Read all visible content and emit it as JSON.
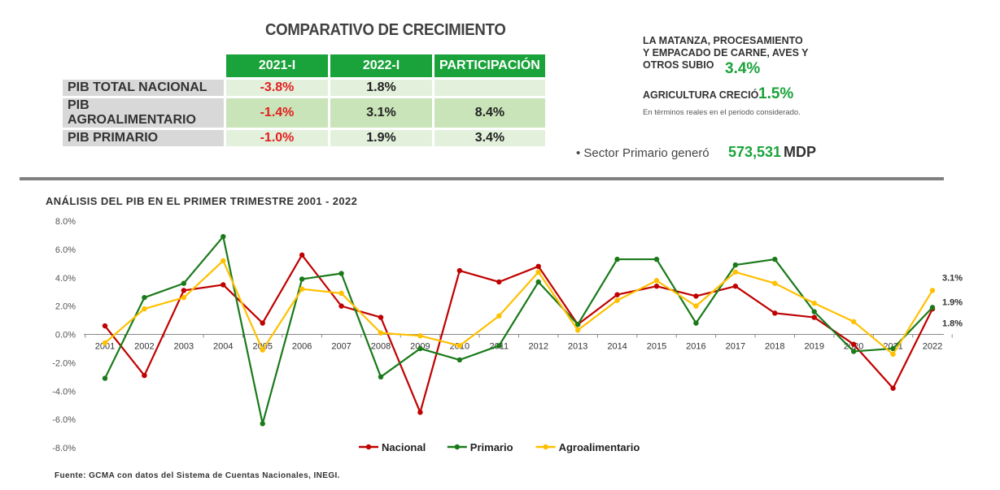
{
  "comparison": {
    "title": "COMPARATIVO DE CRECIMIENTO",
    "headers": [
      "2021-I",
      "2022-I",
      "PARTICIPACIÓN"
    ],
    "rows": [
      {
        "label": "PIB TOTAL NACIONAL",
        "y2021": "-3.8%",
        "y2022": "1.8%",
        "share": ""
      },
      {
        "label": "PIB AGROALIMENTARIO",
        "y2021": "-1.4%",
        "y2022": "3.1%",
        "share": "8.4%"
      },
      {
        "label": "PIB PRIMARIO",
        "y2021": "-1.0%",
        "y2022": "1.9%",
        "share": "3.4%"
      }
    ]
  },
  "notes": {
    "note1_line1": "LA MATANZA, PROCESAMIENTO",
    "note1_line2": "Y EMPACADO DE CARNE, AVES Y",
    "note1_line3": "OTROS SUBIO",
    "note1_value": "3.4%",
    "note2_text": "AGRICULTURA CRECIÓ",
    "note2_value": "1.5%",
    "small_note": "En términos reales en el periodo considerado.",
    "sector_label": "• Sector Primario generó",
    "sector_value": "573,531",
    "sector_unit": "MDP"
  },
  "chart_title": "ANÁLISIS DEL PIB EN EL PRIMER TRIMESTRE 2001 - 2022",
  "source": "Fuente: GCMA con datos del Sistema de Cuentas Nacionales, INEGI.",
  "colors": {
    "nacional": "#c00000",
    "primario": "#1a7a1a",
    "agroalimentario": "#ffc000",
    "accent": "#1aa33a"
  },
  "chart_data": {
    "type": "line",
    "title": "ANÁLISIS DEL PIB EN EL PRIMER TRIMESTRE 2001 - 2022",
    "categories": [
      "2001",
      "2002",
      "2003",
      "2004",
      "2005",
      "2006",
      "2007",
      "2008",
      "2009",
      "2010",
      "2011",
      "2012",
      "2013",
      "2014",
      "2015",
      "2016",
      "2017",
      "2018",
      "2019",
      "2020",
      "2021",
      "2022"
    ],
    "ylim": [
      -8,
      8
    ],
    "yticks": [
      "8.0%",
      "6.0%",
      "4.0%",
      "2.0%",
      "0.0%",
      "-2.0%",
      "-4.0%",
      "-6.0%",
      "-8.0%"
    ],
    "grid": false,
    "legend_position": "bottom",
    "series": [
      {
        "name": "Nacional",
        "values": [
          0.6,
          -2.9,
          3.1,
          3.5,
          0.8,
          5.6,
          2.0,
          1.2,
          -5.5,
          4.5,
          3.7,
          4.8,
          0.7,
          2.8,
          3.4,
          2.7,
          3.4,
          1.5,
          1.2,
          -0.7,
          -3.8,
          1.8
        ]
      },
      {
        "name": "Primario",
        "values": [
          -3.1,
          2.6,
          3.6,
          6.9,
          -6.3,
          3.9,
          4.3,
          -3.0,
          -1.0,
          -1.8,
          -0.8,
          3.7,
          0.7,
          5.3,
          5.3,
          0.8,
          4.9,
          5.3,
          1.6,
          -1.2,
          -1.0,
          1.9
        ]
      },
      {
        "name": "Agroalimentario",
        "values": [
          -0.6,
          1.8,
          2.6,
          5.2,
          -1.1,
          3.2,
          2.9,
          0.1,
          -0.1,
          -0.8,
          1.3,
          4.4,
          0.3,
          2.4,
          3.8,
          2.0,
          4.4,
          3.6,
          2.2,
          0.9,
          -1.4,
          3.1
        ]
      }
    ],
    "end_labels": [
      "1.8%",
      "1.9%",
      "3.1%"
    ]
  }
}
